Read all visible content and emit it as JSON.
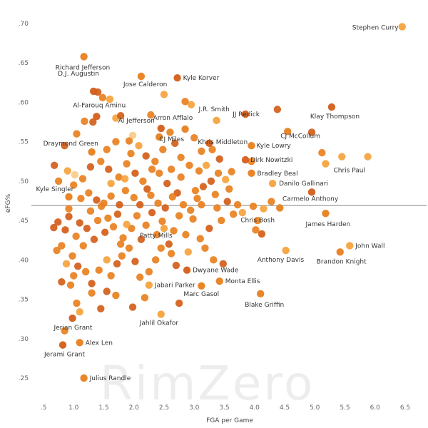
{
  "watermark": "RimZero",
  "chart_data": {
    "type": "scatter",
    "xlabel": "FGA per Game",
    "ylabel": "eFG%",
    "xlim": [
      0.3,
      6.7
    ],
    "ylim": [
      0.23,
      0.71
    ],
    "x_ticks": [
      ".5",
      "1.0",
      "1.5",
      "2.0",
      "2.5",
      "3.0",
      "3.5",
      "4.0",
      "4.5",
      "5.0",
      "5.5",
      "6.0",
      "6.5"
    ],
    "x_tick_values": [
      0.5,
      1.0,
      1.5,
      2.0,
      2.5,
      3.0,
      3.5,
      4.0,
      4.5,
      5.0,
      5.5,
      6.0,
      6.5
    ],
    "y_ticks": [
      ".25",
      ".30",
      ".35",
      ".40",
      ".45",
      ".50",
      ".55",
      ".60",
      ".65",
      ".70"
    ],
    "y_tick_values": [
      0.25,
      0.3,
      0.35,
      0.4,
      0.45,
      0.5,
      0.55,
      0.6,
      0.65,
      0.7
    ],
    "reference_line": {
      "y": 0.469
    },
    "grid": false,
    "colors": {
      "dark": "#d35e1a",
      "mid": "#e8801f",
      "light": "#f5a33d",
      "pale": "#f8cc85",
      "ref_line": "#888888"
    },
    "labeled_points": [
      {
        "name": "Stephen Curry",
        "x": 6.45,
        "y": 0.696,
        "shade": "light"
      },
      {
        "name": "Richard Jefferson",
        "x": 1.17,
        "y": 0.658,
        "shade": "mid"
      },
      {
        "name": "D.J. Augustin",
        "x": 1.33,
        "y": 0.614,
        "shade": "dark"
      },
      {
        "name": "Jose Calderon",
        "x": 2.12,
        "y": 0.633,
        "shade": "mid"
      },
      {
        "name": "Kyle Korver",
        "x": 2.72,
        "y": 0.631,
        "shade": "dark"
      },
      {
        "name": "J.R. Smith",
        "x": 3.37,
        "y": 0.577,
        "shade": "light"
      },
      {
        "name": "Al-Farouq Aminu",
        "x": 1.38,
        "y": 0.582,
        "shade": "dark"
      },
      {
        "name": "Arron Afflalo",
        "x": 2.85,
        "y": 0.566,
        "shade": "mid"
      },
      {
        "name": "Al Jefferson",
        "x": 2.45,
        "y": 0.567,
        "shade": "dark"
      },
      {
        "name": "CJ Miles",
        "x": 2.42,
        "y": 0.556,
        "shade": "mid"
      },
      {
        "name": "JJ Redick",
        "x": 3.85,
        "y": 0.585,
        "shade": "dark"
      },
      {
        "name": "Khris Middleton",
        "x": 3.25,
        "y": 0.548,
        "shade": "dark"
      },
      {
        "name": "Klay Thompson",
        "x": 5.28,
        "y": 0.594,
        "shade": "dark"
      },
      {
        "name": "CJ McCollum",
        "x": 4.55,
        "y": 0.563,
        "shade": "mid"
      },
      {
        "name": "Kyle Lowry",
        "x": 3.95,
        "y": 0.545,
        "shade": "mid"
      },
      {
        "name": "Dirk Nowitzki",
        "x": 3.85,
        "y": 0.527,
        "shade": "dark"
      },
      {
        "name": "Draymond Green",
        "x": 1.3,
        "y": 0.537,
        "shade": "mid"
      },
      {
        "name": "Chris Paul",
        "x": 5.18,
        "y": 0.522,
        "shade": "light"
      },
      {
        "name": "Bradley Beal",
        "x": 3.95,
        "y": 0.51,
        "shade": "mid"
      },
      {
        "name": "Danilo Gallinari",
        "x": 4.3,
        "y": 0.497,
        "shade": "light"
      },
      {
        "name": "Carmelo Anthony",
        "x": 4.95,
        "y": 0.486,
        "shade": "dark"
      },
      {
        "name": "Kyle Singler",
        "x": 0.92,
        "y": 0.48,
        "shade": "mid"
      },
      {
        "name": "Chris Bosh",
        "x": 4.42,
        "y": 0.466,
        "shade": "mid"
      },
      {
        "name": "James Harden",
        "x": 5.18,
        "y": 0.459,
        "shade": "mid"
      },
      {
        "name": "Patty Mills",
        "x": 2.5,
        "y": 0.44,
        "shade": "light"
      },
      {
        "name": "John Wall",
        "x": 5.58,
        "y": 0.418,
        "shade": "light"
      },
      {
        "name": "Anthony Davis",
        "x": 4.52,
        "y": 0.412,
        "shade": "light"
      },
      {
        "name": "Brandon Knight",
        "x": 5.42,
        "y": 0.41,
        "shade": "mid"
      },
      {
        "name": "Dwyane Wade",
        "x": 2.88,
        "y": 0.387,
        "shade": "dark"
      },
      {
        "name": "Monta Ellis",
        "x": 3.42,
        "y": 0.373,
        "shade": "mid"
      },
      {
        "name": "Jabari Parker",
        "x": 2.25,
        "y": 0.368,
        "shade": "light"
      },
      {
        "name": "Marc Gasol",
        "x": 3.12,
        "y": 0.367,
        "shade": "mid"
      },
      {
        "name": "Blake Griffin",
        "x": 4.1,
        "y": 0.357,
        "shade": "mid"
      },
      {
        "name": "Jahlil Okafor",
        "x": 2.45,
        "y": 0.331,
        "shade": "light"
      },
      {
        "name": "Jerian Grant",
        "x": 0.98,
        "y": 0.326,
        "shade": "dark"
      },
      {
        "name": "Alex Len",
        "x": 1.1,
        "y": 0.295,
        "shade": "mid"
      },
      {
        "name": "Jerami Grant",
        "x": 0.82,
        "y": 0.292,
        "shade": "dark"
      },
      {
        "name": "Julius Randle",
        "x": 1.17,
        "y": 0.25,
        "shade": "mid"
      }
    ],
    "other_points": [
      [
        4.38,
        0.591,
        "dark"
      ],
      [
        5.88,
        0.531,
        "light"
      ],
      [
        5.45,
        0.531,
        "light"
      ],
      [
        5.12,
        0.536,
        "mid"
      ],
      [
        4.95,
        0.562,
        "dark"
      ],
      [
        3.95,
        0.525,
        "mid"
      ],
      [
        3.62,
        0.512,
        "mid"
      ],
      [
        3.42,
        0.528,
        "dark"
      ],
      [
        3.52,
        0.502,
        "light"
      ],
      [
        3.3,
        0.54,
        "mid"
      ],
      [
        3.2,
        0.52,
        "light"
      ],
      [
        3.08,
        0.513,
        "mid"
      ],
      [
        3.0,
        0.555,
        "mid"
      ],
      [
        2.95,
        0.597,
        "light"
      ],
      [
        2.85,
        0.601,
        "mid"
      ],
      [
        2.6,
        0.562,
        "mid"
      ],
      [
        2.5,
        0.61,
        "light"
      ],
      [
        2.28,
        0.584,
        "mid"
      ],
      [
        1.98,
        0.558,
        "pale"
      ],
      [
        1.92,
        0.551,
        "mid"
      ],
      [
        1.7,
        0.58,
        "light"
      ],
      [
        1.78,
        0.583,
        "dark"
      ],
      [
        1.6,
        0.604,
        "light"
      ],
      [
        1.48,
        0.606,
        "mid"
      ],
      [
        1.4,
        0.613,
        "dark"
      ],
      [
        1.32,
        0.575,
        "dark"
      ],
      [
        1.18,
        0.576,
        "mid"
      ],
      [
        1.05,
        0.56,
        "mid"
      ],
      [
        0.85,
        0.545,
        "dark"
      ],
      [
        0.68,
        0.52,
        "dark"
      ],
      [
        0.75,
        0.5,
        "mid"
      ],
      [
        0.9,
        0.513,
        "light"
      ],
      [
        1.02,
        0.508,
        "pale"
      ],
      [
        1.15,
        0.503,
        "mid"
      ],
      [
        1.28,
        0.518,
        "dark"
      ],
      [
        1.45,
        0.525,
        "mid"
      ],
      [
        1.58,
        0.515,
        "dark"
      ],
      [
        1.62,
        0.497,
        "light"
      ],
      [
        1.75,
        0.505,
        "mid"
      ],
      [
        1.88,
        0.522,
        "mid"
      ],
      [
        2.02,
        0.51,
        "dark"
      ],
      [
        2.15,
        0.5,
        "mid"
      ],
      [
        2.22,
        0.49,
        "dark"
      ],
      [
        2.35,
        0.525,
        "mid"
      ],
      [
        2.42,
        0.51,
        "mid"
      ],
      [
        2.55,
        0.497,
        "dark"
      ],
      [
        2.62,
        0.515,
        "mid"
      ],
      [
        2.72,
        0.485,
        "dark"
      ],
      [
        2.78,
        0.505,
        "mid"
      ],
      [
        2.92,
        0.52,
        "mid"
      ],
      [
        3.05,
        0.478,
        "mid"
      ],
      [
        3.15,
        0.493,
        "dark"
      ],
      [
        3.28,
        0.5,
        "dark"
      ],
      [
        3.35,
        0.483,
        "mid"
      ],
      [
        3.58,
        0.49,
        "mid"
      ],
      [
        3.72,
        0.47,
        "mid"
      ],
      [
        3.8,
        0.46,
        "light"
      ],
      [
        3.98,
        0.468,
        "mid"
      ],
      [
        4.05,
        0.45,
        "mid"
      ],
      [
        4.12,
        0.433,
        "dark"
      ],
      [
        4.02,
        0.438,
        "mid"
      ],
      [
        4.15,
        0.465,
        "light"
      ],
      [
        4.28,
        0.474,
        "mid"
      ],
      [
        3.45,
        0.45,
        "mid"
      ],
      [
        3.25,
        0.44,
        "dark"
      ],
      [
        3.1,
        0.427,
        "mid"
      ],
      [
        2.98,
        0.452,
        "mid"
      ],
      [
        2.86,
        0.432,
        "mid"
      ],
      [
        2.75,
        0.456,
        "mid"
      ],
      [
        2.66,
        0.437,
        "mid"
      ],
      [
        2.58,
        0.42,
        "dark"
      ],
      [
        2.47,
        0.449,
        "mid"
      ],
      [
        2.38,
        0.432,
        "mid"
      ],
      [
        2.3,
        0.46,
        "dark"
      ],
      [
        2.2,
        0.444,
        "mid"
      ],
      [
        2.12,
        0.426,
        "dark"
      ],
      [
        2.05,
        0.456,
        "mid"
      ],
      [
        1.96,
        0.44,
        "mid"
      ],
      [
        1.88,
        0.445,
        "light"
      ],
      [
        1.82,
        0.428,
        "mid"
      ],
      [
        1.73,
        0.458,
        "dark"
      ],
      [
        1.66,
        0.442,
        "mid"
      ],
      [
        1.57,
        0.453,
        "mid"
      ],
      [
        1.52,
        0.435,
        "dark"
      ],
      [
        1.46,
        0.468,
        "mid"
      ],
      [
        1.4,
        0.45,
        "mid"
      ],
      [
        1.34,
        0.426,
        "dark"
      ],
      [
        1.28,
        0.462,
        "mid"
      ],
      [
        1.22,
        0.44,
        "dark"
      ],
      [
        1.16,
        0.418,
        "mid"
      ],
      [
        1.1,
        0.447,
        "dark"
      ],
      [
        1.04,
        0.43,
        "mid"
      ],
      [
        0.98,
        0.405,
        "mid"
      ],
      [
        0.92,
        0.455,
        "dark"
      ],
      [
        0.86,
        0.438,
        "dark"
      ],
      [
        0.8,
        0.418,
        "mid"
      ],
      [
        0.74,
        0.448,
        "dark"
      ],
      [
        0.67,
        0.441,
        "dark"
      ],
      [
        0.72,
        0.412,
        "mid"
      ],
      [
        0.88,
        0.395,
        "light"
      ],
      [
        1.0,
        0.38,
        "mid"
      ],
      [
        1.07,
        0.392,
        "dark"
      ],
      [
        1.2,
        0.385,
        "mid"
      ],
      [
        1.3,
        0.37,
        "dark"
      ],
      [
        1.42,
        0.387,
        "mid"
      ],
      [
        1.55,
        0.4,
        "light"
      ],
      [
        1.62,
        0.38,
        "mid"
      ],
      [
        1.72,
        0.395,
        "dark"
      ],
      [
        1.8,
        0.405,
        "mid"
      ],
      [
        1.92,
        0.415,
        "mid"
      ],
      [
        2.02,
        0.398,
        "dark"
      ],
      [
        2.1,
        0.378,
        "mid"
      ],
      [
        2.25,
        0.385,
        "mid"
      ],
      [
        2.36,
        0.4,
        "mid"
      ],
      [
        2.62,
        0.408,
        "mid"
      ],
      [
        2.7,
        0.393,
        "dark"
      ],
      [
        2.9,
        0.41,
        "light"
      ],
      [
        3.18,
        0.415,
        "mid"
      ],
      [
        3.32,
        0.4,
        "mid"
      ],
      [
        3.48,
        0.395,
        "dark"
      ],
      [
        0.95,
        0.368,
        "mid"
      ],
      [
        1.05,
        0.345,
        "mid"
      ],
      [
        1.3,
        0.358,
        "mid"
      ],
      [
        1.55,
        0.36,
        "dark"
      ],
      [
        1.7,
        0.355,
        "mid"
      ],
      [
        1.98,
        0.34,
        "dark"
      ],
      [
        2.18,
        0.352,
        "mid"
      ],
      [
        2.75,
        0.345,
        "dark"
      ],
      [
        1.45,
        0.338,
        "dark"
      ],
      [
        1.1,
        0.334,
        "light"
      ],
      [
        0.85,
        0.31,
        "mid"
      ],
      [
        0.8,
        0.372,
        "dark"
      ],
      [
        1.12,
        0.478,
        "mid"
      ],
      [
        1.25,
        0.485,
        "mid"
      ],
      [
        1.38,
        0.476,
        "dark"
      ],
      [
        1.5,
        0.472,
        "mid"
      ],
      [
        1.62,
        0.481,
        "mid"
      ],
      [
        1.76,
        0.47,
        "dark"
      ],
      [
        1.86,
        0.488,
        "mid"
      ],
      [
        2.0,
        0.479,
        "mid"
      ],
      [
        2.1,
        0.47,
        "dark"
      ],
      [
        2.28,
        0.482,
        "mid"
      ],
      [
        2.4,
        0.472,
        "mid"
      ],
      [
        2.52,
        0.466,
        "dark"
      ],
      [
        2.64,
        0.48,
        "mid"
      ],
      [
        2.82,
        0.47,
        "mid"
      ],
      [
        2.94,
        0.463,
        "mid"
      ],
      [
        3.12,
        0.47,
        "mid"
      ],
      [
        3.38,
        0.466,
        "mid"
      ],
      [
        3.55,
        0.474,
        "dark"
      ],
      [
        3.65,
        0.458,
        "mid"
      ],
      [
        1.0,
        0.495,
        "mid"
      ],
      [
        1.95,
        0.535,
        "mid"
      ],
      [
        2.08,
        0.545,
        "light"
      ],
      [
        2.48,
        0.54,
        "mid"
      ],
      [
        2.68,
        0.548,
        "dark"
      ],
      [
        2.78,
        0.53,
        "mid"
      ],
      [
        3.12,
        0.538,
        "mid"
      ],
      [
        1.55,
        0.54,
        "mid"
      ],
      [
        1.7,
        0.55,
        "mid"
      ],
      [
        1.85,
        0.503,
        "light"
      ],
      [
        2.3,
        0.515,
        "mid"
      ],
      [
        3.4,
        0.51,
        "mid"
      ],
      [
        2.2,
        0.532,
        "dark"
      ],
      [
        0.92,
        0.465,
        "mid"
      ],
      [
        1.78,
        0.42,
        "mid"
      ],
      [
        2.45,
        0.415,
        "mid"
      ],
      [
        3.02,
        0.488,
        "mid"
      ]
    ]
  }
}
